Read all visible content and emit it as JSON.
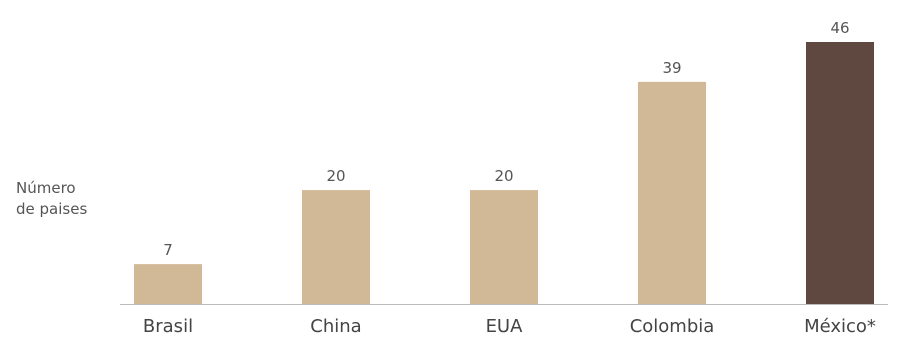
{
  "chart_data": {
    "type": "bar",
    "title": "",
    "xlabel": "",
    "ylabel": "Número\nde paises",
    "categories": [
      "Brasil",
      "China",
      "EUA",
      "Colombia",
      "México*"
    ],
    "values": [
      7,
      20,
      20,
      39,
      46
    ],
    "value_labels": [
      "7",
      "20",
      "20",
      "39",
      "46"
    ],
    "ylim": [
      0,
      46
    ],
    "grid": false,
    "legend": "none",
    "colors": {
      "default_bar": "#D1B896",
      "highlight_bar": "#5E4840",
      "axis": "#BBBBBB",
      "text": "#555555"
    },
    "highlight_index": 4
  }
}
